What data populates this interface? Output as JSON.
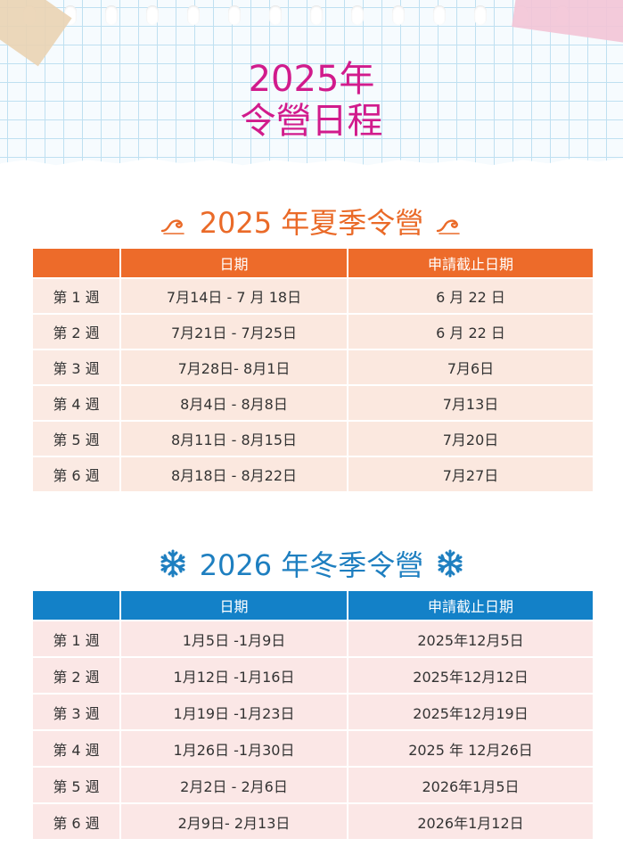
{
  "header": {
    "title_line1": "2025年",
    "title_line2": "令營日程"
  },
  "summer": {
    "title": "2025 年夏季令營",
    "icon": "wave-icon",
    "accent": "#ed6b2a",
    "headers": [
      "",
      "日期",
      "申請截止日期"
    ],
    "rows": [
      {
        "week": "第 1 週",
        "dates": "7月14日 - 7 月 18日",
        "deadline": "6 月 22 日"
      },
      {
        "week": "第 2 週",
        "dates": "7月21日 - 7月25日",
        "deadline": "6 月 22 日"
      },
      {
        "week": "第 3 週",
        "dates": "7月28日- 8月1日",
        "deadline": "7月6日"
      },
      {
        "week": "第 4 週",
        "dates": "8月4日 - 8月8日",
        "deadline": "7月13日"
      },
      {
        "week": "第 5 週",
        "dates": "8月11日 - 8月15日",
        "deadline": "7月20日"
      },
      {
        "week": "第 6 週",
        "dates": "8月18日 - 8月22日",
        "deadline": "7月27日"
      }
    ]
  },
  "winter": {
    "title": "2026 年冬季令營",
    "icon": "snowflake-icon",
    "accent": "#1381c8",
    "headers": [
      "",
      "日期",
      "申請截止日期"
    ],
    "rows": [
      {
        "week": "第 1 週",
        "dates": "1月5日 -1月9日",
        "deadline": "2025年12月5日"
      },
      {
        "week": "第 2 週",
        "dates": "1月12日 -1月16日",
        "deadline": "2025年12月12日"
      },
      {
        "week": "第 3 週",
        "dates": "1月19日 -1月23日",
        "deadline": "2025年12月19日"
      },
      {
        "week": "第 4 週",
        "dates": "1月26日 -1月30日",
        "deadline": "2025 年 12月26日"
      },
      {
        "week": "第 5 週",
        "dates": "2月2日 - 2月6日",
        "deadline": "2026年1月5日"
      },
      {
        "week": "第 6 週",
        "dates": "2月9日- 2月13日",
        "deadline": "2026年1月12日"
      }
    ]
  }
}
